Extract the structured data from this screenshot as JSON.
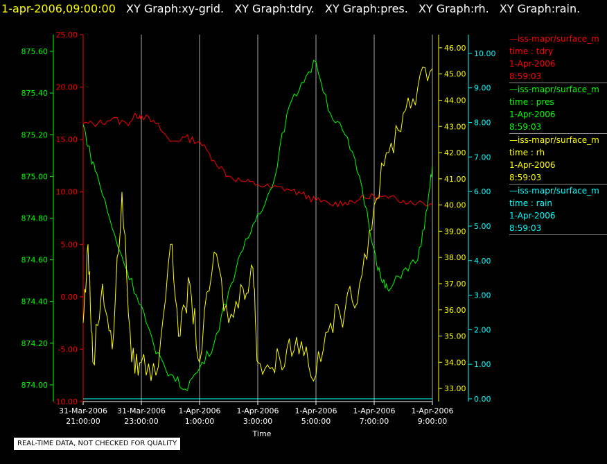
{
  "title": {
    "timestamp": "1-apr-2006,09:00:00",
    "graphs": [
      "XY Graph:xy-grid.",
      "XY Graph:tdry.",
      "XY Graph:pres.",
      "XY Graph:rh.",
      "XY Graph:rain."
    ]
  },
  "colors": {
    "background": "#000000",
    "grid": "#aaaaaa",
    "tdry": "#ff0000",
    "pres": "#00ff00",
    "rh": "#ffff00",
    "rain": "#00ffff",
    "timestamp": "#ffff00"
  },
  "legend": [
    {
      "source": "—iss-mapr/surface_m",
      "label": "time : tdry",
      "date": "1-Apr-2006",
      "time": "8:59:03",
      "color": "#ff0000",
      "icon": "line-swatch"
    },
    {
      "source": "—iss-mapr/surface_m",
      "label": "time : pres",
      "date": "1-Apr-2006",
      "time": "8:59:03",
      "color": "#00ff00",
      "icon": "line-swatch"
    },
    {
      "source": "—iss-mapr/surface_m",
      "label": "time : rh",
      "date": "1-Apr-2006",
      "time": "8:59:03",
      "color": "#ffff00",
      "icon": "line-swatch"
    },
    {
      "source": "—iss-mapr/surface_m",
      "label": "time : rain",
      "date": "1-Apr-2006",
      "time": "8:59:03",
      "color": "#00ffff",
      "icon": "line-swatch"
    }
  ],
  "disclaimer": "REAL-TIME DATA, NOT CHECKED FOR QUALITY",
  "chart_data": {
    "type": "line",
    "xlabel": "Time",
    "x_ticks": [
      {
        "value": "2006-03-31T21:00:00",
        "line1": "31-Mar-2006",
        "line2": "21:00:00"
      },
      {
        "value": "2006-03-31T23:00:00",
        "line1": "31-Mar-2006",
        "line2": "23:00:00"
      },
      {
        "value": "2006-04-01T01:00:00",
        "line1": "1-Apr-2006",
        "line2": "1:00:00"
      },
      {
        "value": "2006-04-01T03:00:00",
        "line1": "1-Apr-2006",
        "line2": "3:00:00"
      },
      {
        "value": "2006-04-01T05:00:00",
        "line1": "1-Apr-2006",
        "line2": "5:00:00"
      },
      {
        "value": "2006-04-01T07:00:00",
        "line1": "1-Apr-2006",
        "line2": "7:00:00"
      },
      {
        "value": "2006-04-01T09:00:00",
        "line1": "1-Apr-2006",
        "line2": "9:00:00"
      }
    ],
    "x_range": [
      "2006-03-31T21:00:00",
      "2006-04-01T09:00:00"
    ],
    "grid": "vertical",
    "axes": {
      "pres": {
        "min": 873.92,
        "max": 875.68,
        "ticks": [
          "874.00",
          "874.20",
          "874.40",
          "874.60",
          "874.80",
          "875.00",
          "875.20",
          "875.40",
          "875.60"
        ],
        "color": "#00ff00"
      },
      "tdry": {
        "min": -10,
        "max": 25,
        "ticks": [
          "-10.00",
          "-5.00",
          "0.00",
          "5.00",
          "10.00",
          "15.00",
          "20.00",
          "25.00"
        ],
        "color": "#ff0000"
      },
      "rh": {
        "min": 32.5,
        "max": 46.5,
        "ticks": [
          "33.00",
          "34.00",
          "35.00",
          "36.00",
          "37.00",
          "38.00",
          "39.00",
          "40.00",
          "41.00",
          "42.00",
          "43.00",
          "44.00",
          "45.00",
          "46.00"
        ],
        "color": "#ffff00"
      },
      "rain": {
        "min": -0.08,
        "max": 10.54,
        "ticks": [
          "0.00",
          "1.00",
          "2.00",
          "3.00",
          "4.00",
          "5.00",
          "6.00",
          "7.00",
          "8.00",
          "9.00",
          "10.00"
        ],
        "color": "#00ffff"
      }
    },
    "series": [
      {
        "key": "tdry",
        "color": "#ff0000",
        "axis": "tdry",
        "x": [
          "2006-03-31T21:00:00",
          "2006-03-31T21:30:00",
          "2006-03-31T22:00:00",
          "2006-03-31T22:30:00",
          "2006-03-31T22:50:00",
          "2006-03-31T23:00:00",
          "2006-03-31T23:30:00",
          "2006-04-01T00:00:00",
          "2006-04-01T00:30:00",
          "2006-04-01T01:00:00",
          "2006-04-01T01:30:00",
          "2006-04-01T02:00:00",
          "2006-04-01T02:30:00",
          "2006-04-01T03:00:00",
          "2006-04-01T03:30:00",
          "2006-04-01T04:00:00",
          "2006-04-01T04:30:00",
          "2006-04-01T05:00:00",
          "2006-04-01T05:30:00",
          "2006-04-01T06:00:00",
          "2006-04-01T06:30:00",
          "2006-04-01T07:00:00",
          "2006-04-01T07:30:00",
          "2006-04-01T08:00:00",
          "2006-04-01T08:30:00",
          "2006-04-01T09:00:00"
        ],
        "values": [
          16.5,
          16.5,
          17,
          16.5,
          17.3,
          17.3,
          16.5,
          14.8,
          15.2,
          14.8,
          13,
          11.5,
          11,
          10.7,
          10.4,
          10.3,
          9.8,
          9.2,
          8.8,
          9,
          9.3,
          9.6,
          9.4,
          9.2,
          9,
          8.8
        ]
      },
      {
        "key": "pres",
        "color": "#00ff00",
        "axis": "pres",
        "x": [
          "2006-03-31T21:00:00",
          "2006-03-31T21:15:00",
          "2006-03-31T21:30:00",
          "2006-03-31T22:00:00",
          "2006-03-31T22:30:00",
          "2006-03-31T23:00:00",
          "2006-03-31T23:30:00",
          "2006-04-01T00:00:00",
          "2006-04-01T00:30:00",
          "2006-04-01T01:00:00",
          "2006-04-01T01:30:00",
          "2006-04-01T02:00:00",
          "2006-04-01T02:30:00",
          "2006-04-01T03:00:00",
          "2006-04-01T03:30:00",
          "2006-04-01T04:00:00",
          "2006-04-01T04:30:00",
          "2006-04-01T05:00:00",
          "2006-04-01T05:30:00",
          "2006-04-01T06:00:00",
          "2006-04-01T06:30:00",
          "2006-04-01T07:00:00",
          "2006-04-01T07:15:00",
          "2006-04-01T07:30:00",
          "2006-04-01T08:00:00",
          "2006-04-01T08:30:00",
          "2006-04-01T08:50:00",
          "2006-04-01T09:00:00"
        ],
        "values": [
          875.25,
          875.1,
          875.0,
          874.75,
          874.55,
          874.38,
          874.15,
          874.05,
          873.98,
          874.08,
          874.2,
          874.45,
          874.65,
          874.82,
          874.95,
          875.3,
          875.45,
          875.55,
          875.3,
          875.2,
          875.0,
          874.65,
          874.5,
          874.45,
          874.55,
          874.6,
          874.85,
          875.05
        ]
      },
      {
        "key": "rh",
        "color": "#ffff00",
        "axis": "rh",
        "x": [
          "2006-03-31T21:00:00",
          "2006-03-31T21:10:00",
          "2006-03-31T21:20:00",
          "2006-03-31T21:40:00",
          "2006-03-31T22:00:00",
          "2006-03-31T22:20:00",
          "2006-03-31T22:40:00",
          "2006-03-31T23:00:00",
          "2006-03-31T23:30:00",
          "2006-04-01T00:00:00",
          "2006-04-01T00:20:00",
          "2006-04-01T00:40:00",
          "2006-04-01T01:00:00",
          "2006-04-01T01:30:00",
          "2006-04-01T02:00:00",
          "2006-04-01T02:30:00",
          "2006-04-01T02:50:00",
          "2006-04-01T03:00:00",
          "2006-04-01T03:30:00",
          "2006-04-01T04:00:00",
          "2006-04-01T04:30:00",
          "2006-04-01T05:00:00",
          "2006-04-01T05:30:00",
          "2006-04-01T06:00:00",
          "2006-04-01T06:30:00",
          "2006-04-01T07:00:00",
          "2006-04-01T07:30:00",
          "2006-04-01T08:00:00",
          "2006-04-01T08:30:00",
          "2006-04-01T09:00:00"
        ],
        "values": [
          35.5,
          38.5,
          34,
          37,
          34.5,
          40.5,
          34,
          34,
          33.5,
          38.5,
          35,
          37,
          34,
          38.2,
          35.5,
          36.8,
          37.6,
          34,
          33.8,
          34.5,
          34.8,
          33.5,
          35.5,
          36,
          37,
          40,
          42,
          43.5,
          44.5,
          45.2
        ]
      },
      {
        "key": "rain",
        "color": "#00ffff",
        "axis": "rain",
        "x": [
          "2006-03-31T21:00:00",
          "2006-04-01T09:00:00"
        ],
        "values": [
          0,
          0
        ]
      }
    ]
  }
}
